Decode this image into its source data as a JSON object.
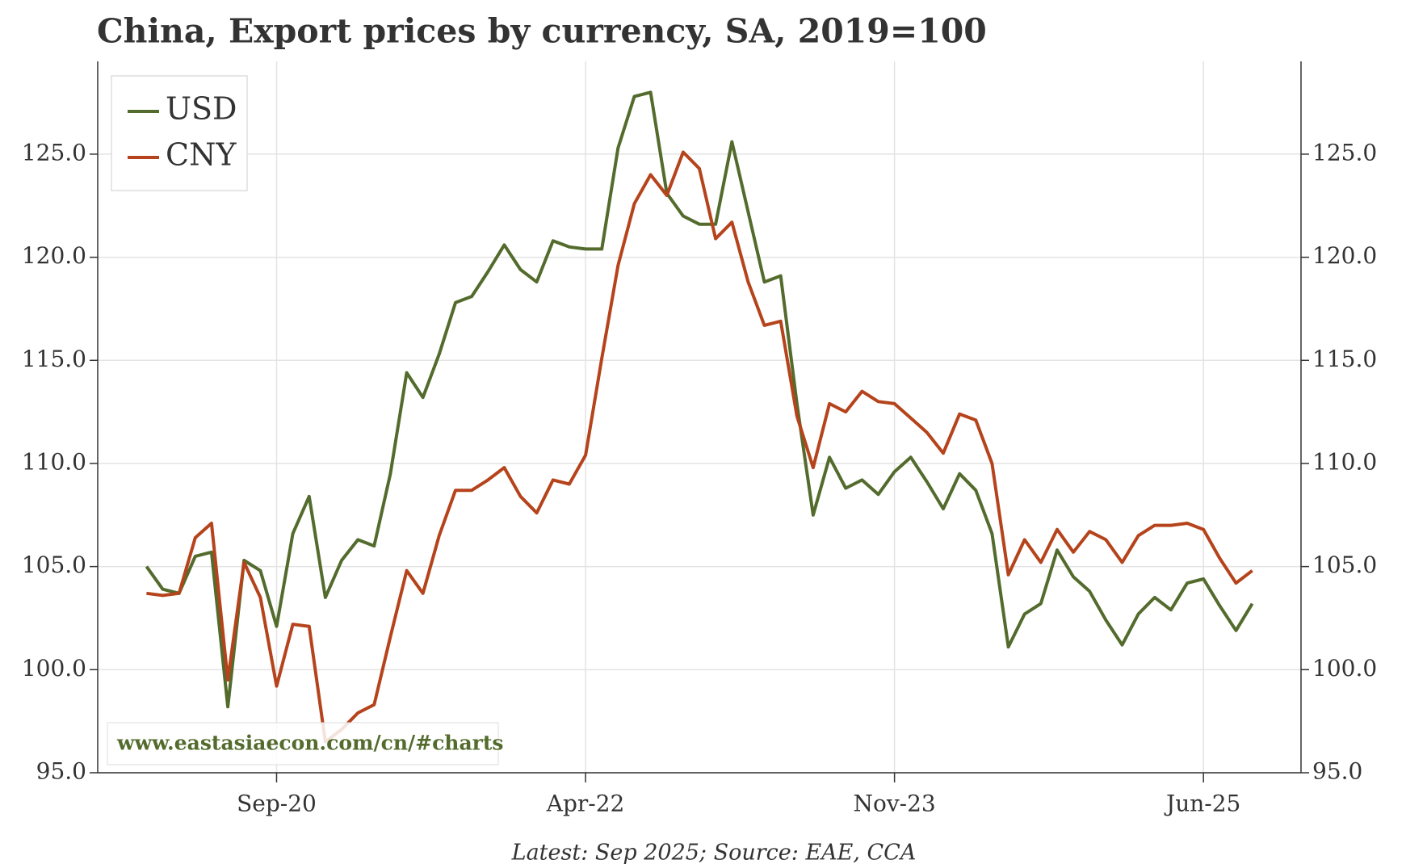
{
  "chart_data": {
    "type": "line",
    "title": "China, Export prices by currency, SA, 2019=100",
    "footnote": "Latest: Sep 2025; Source: EAE, CCA",
    "watermark": "www.eastasiaecon.com/cn/#charts",
    "x": [
      "2020-01",
      "2020-02",
      "2020-03",
      "2020-04",
      "2020-05",
      "2020-06",
      "2020-07",
      "2020-08",
      "2020-09",
      "2020-10",
      "2020-11",
      "2020-12",
      "2021-01",
      "2021-02",
      "2021-03",
      "2021-04",
      "2021-05",
      "2021-06",
      "2021-07",
      "2021-08",
      "2021-09",
      "2021-10",
      "2021-11",
      "2021-12",
      "2022-01",
      "2022-02",
      "2022-03",
      "2022-04",
      "2022-05",
      "2022-06",
      "2022-07",
      "2022-08",
      "2022-09",
      "2022-10",
      "2022-11",
      "2022-12",
      "2023-01",
      "2023-02",
      "2023-03",
      "2023-04",
      "2023-05",
      "2023-06",
      "2023-07",
      "2023-08",
      "2023-09",
      "2023-10",
      "2023-11",
      "2023-12",
      "2024-01",
      "2024-02",
      "2024-03",
      "2024-04",
      "2024-05",
      "2024-06",
      "2024-07",
      "2024-08",
      "2024-09",
      "2024-10",
      "2024-11",
      "2024-12",
      "2025-01",
      "2025-02",
      "2025-03",
      "2025-04",
      "2025-05",
      "2025-06",
      "2025-07",
      "2025-08",
      "2025-09"
    ],
    "series": [
      {
        "name": "USD",
        "color": "#536b2c",
        "values": [
          105.0,
          103.9,
          103.7,
          105.5,
          105.7,
          98.2,
          105.3,
          104.8,
          102.1,
          106.6,
          108.4,
          103.5,
          105.3,
          106.3,
          106.0,
          109.5,
          114.4,
          113.2,
          115.3,
          117.8,
          118.1,
          119.3,
          120.6,
          119.4,
          118.8,
          120.8,
          120.5,
          120.4,
          120.4,
          125.3,
          127.8,
          128.0,
          123.1,
          122.0,
          121.6,
          121.6,
          125.6,
          122.2,
          118.8,
          119.1,
          112.9,
          107.5,
          110.3,
          108.8,
          109.2,
          108.5,
          109.6,
          110.3,
          109.1,
          107.8,
          109.5,
          108.7,
          106.6,
          101.1,
          102.7,
          103.2,
          105.8,
          104.5,
          103.8,
          102.4,
          101.2,
          102.7,
          103.5,
          102.9,
          104.2,
          104.4,
          103.1,
          101.9,
          103.2
        ]
      },
      {
        "name": "CNY",
        "color": "#b5431b",
        "values": [
          103.7,
          103.6,
          103.7,
          106.4,
          107.1,
          99.5,
          105.2,
          103.5,
          99.2,
          102.2,
          102.1,
          96.5,
          97.1,
          97.9,
          98.3,
          101.6,
          104.8,
          103.7,
          106.5,
          108.7,
          108.7,
          109.2,
          109.8,
          108.4,
          107.6,
          109.2,
          109.0,
          110.4,
          115.1,
          119.6,
          122.6,
          124.0,
          123.0,
          125.1,
          124.3,
          120.9,
          121.7,
          118.8,
          116.7,
          116.9,
          112.3,
          109.8,
          112.9,
          112.5,
          113.5,
          113.0,
          112.9,
          112.2,
          111.5,
          110.5,
          112.4,
          112.1,
          110.0,
          104.6,
          106.3,
          105.2,
          106.8,
          105.7,
          106.7,
          106.3,
          105.2,
          106.5,
          107.0,
          107.0,
          107.1,
          106.8,
          105.4,
          104.2,
          104.8
        ]
      }
    ],
    "xlim": [
      "2019-10",
      "2025-12"
    ],
    "xticks": [
      {
        "value": "2020-09",
        "label": "Sep-20"
      },
      {
        "value": "2022-04",
        "label": "Apr-22"
      },
      {
        "value": "2023-11",
        "label": "Nov-23"
      },
      {
        "value": "2025-06",
        "label": "Jun-25"
      }
    ],
    "ylim": [
      95,
      129.5
    ],
    "yticks": [
      {
        "value": 95,
        "label": "95.0"
      },
      {
        "value": 100,
        "label": "100.0"
      },
      {
        "value": 105,
        "label": "105.0"
      },
      {
        "value": 110,
        "label": "110.0"
      },
      {
        "value": 115,
        "label": "115.0"
      },
      {
        "value": 120,
        "label": "120.0"
      },
      {
        "value": 125,
        "label": "125.0"
      }
    ],
    "grid": true,
    "legend": "upper left"
  }
}
